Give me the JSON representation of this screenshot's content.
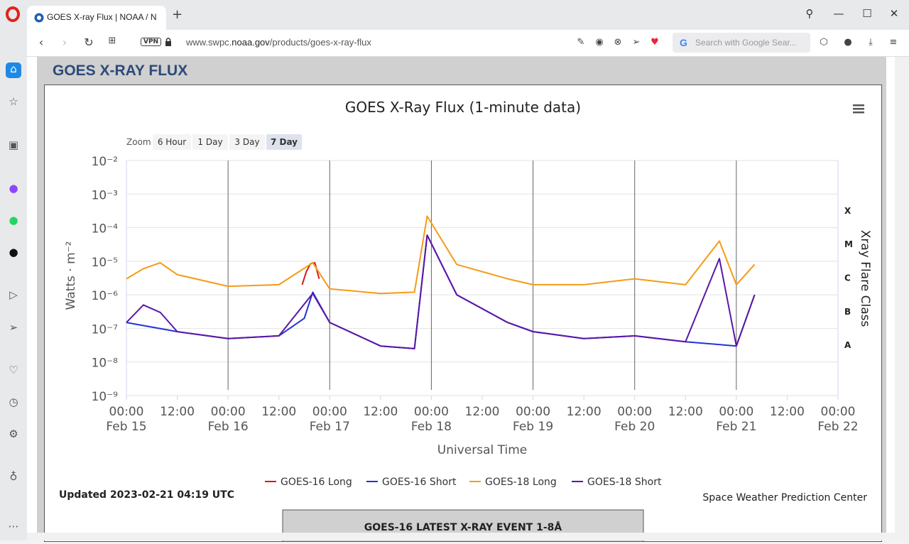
{
  "browser": {
    "tab_title": "GOES X-ray Flux | NOAA / N",
    "url_prefix": "www.swpc.",
    "url_domain": "noaa.gov",
    "url_path": "/products/goes-x-ray-flux",
    "vpn_label": "VPN",
    "search_placeholder": "Search with Google Sear...",
    "new_tab": "+"
  },
  "page": {
    "header": "GOES X-RAY FLUX",
    "updated": "Updated 2023-02-21 04:19 UTC",
    "credit": "Space Weather Prediction Center",
    "latest_event_title": "GOES-16 LATEST X-RAY EVENT 1-8Å"
  },
  "zoom": {
    "label": "Zoom",
    "buttons": [
      "6 Hour",
      "1 Day",
      "3 Day",
      "7 Day"
    ],
    "selected": "7 Day"
  },
  "chart_data": {
    "type": "line",
    "title": "GOES X-Ray Flux (1-minute data)",
    "xlabel": "Universal Time",
    "ylabel": "Watts · m⁻²",
    "y2label": "Xray Flare Class",
    "yscale": "log",
    "ylim": [
      1e-09,
      0.01
    ],
    "ytick_labels": [
      "10⁻²",
      "10⁻³",
      "10⁻⁴",
      "10⁻⁵",
      "10⁻⁶",
      "10⁻⁷",
      "10⁻⁸",
      "10⁻⁹"
    ],
    "xlim": [
      "2023-02-15 00:00",
      "2023-02-22 00:00"
    ],
    "xtick_labels": [
      [
        "00:00",
        "Feb 15"
      ],
      [
        "12:00",
        ""
      ],
      [
        "00:00",
        "Feb 16"
      ],
      [
        "12:00",
        ""
      ],
      [
        "00:00",
        "Feb 17"
      ],
      [
        "12:00",
        ""
      ],
      [
        "00:00",
        "Feb 18"
      ],
      [
        "12:00",
        ""
      ],
      [
        "00:00",
        "Feb 19"
      ],
      [
        "12:00",
        ""
      ],
      [
        "00:00",
        "Feb 20"
      ],
      [
        "12:00",
        ""
      ],
      [
        "00:00",
        "Feb 21"
      ],
      [
        "12:00",
        ""
      ],
      [
        "00:00",
        "Feb 22"
      ]
    ],
    "flare_classes": [
      {
        "label": "X",
        "flux": 0.0001
      },
      {
        "label": "M",
        "flux": 1e-05
      },
      {
        "label": "C",
        "flux": 1e-06
      },
      {
        "label": "B",
        "flux": 1e-07
      },
      {
        "label": "A",
        "flux": 1e-08
      }
    ],
    "legend_position": "bottom",
    "grid": true,
    "series": [
      {
        "name": "GOES-16 Long",
        "color": "#d7191c",
        "x": [
          "2023-02-16 17:30",
          "2023-02-16 18:30",
          "2023-02-16 19:30",
          "2023-02-16 20:30",
          "2023-02-16 21:30"
        ],
        "y": [
          2e-06,
          5e-06,
          8.5e-06,
          9e-06,
          3e-06
        ]
      },
      {
        "name": "GOES-16 Short",
        "color": "#2433d6",
        "x": [
          "2023-02-15 00:00",
          "2023-02-15 12:00",
          "2023-02-16 00:00",
          "2023-02-16 12:00",
          "2023-02-16 18:00",
          "2023-02-16 20:00",
          "2023-02-17 00:00",
          "2023-02-17 12:00",
          "2023-02-17 20:00",
          "2023-02-17 23:00",
          "2023-02-18 06:00",
          "2023-02-18 18:00",
          "2023-02-19 00:00",
          "2023-02-19 12:00",
          "2023-02-20 00:00",
          "2023-02-20 12:00",
          "2023-02-21 00:00",
          "2023-02-21 04:19"
        ],
        "y": [
          1.5e-07,
          8e-08,
          5e-08,
          6e-08,
          2e-07,
          1.2e-06,
          1.5e-07,
          3e-08,
          2.5e-08,
          6e-05,
          1e-06,
          1.5e-07,
          8e-08,
          5e-08,
          6e-08,
          4e-08,
          3e-08,
          1e-06
        ]
      },
      {
        "name": "GOES-18 Long",
        "color": "#f59b16",
        "x": [
          "2023-02-15 00:00",
          "2023-02-15 04:00",
          "2023-02-15 08:00",
          "2023-02-15 12:00",
          "2023-02-16 00:00",
          "2023-02-16 12:00",
          "2023-02-16 20:00",
          "2023-02-17 00:00",
          "2023-02-17 12:00",
          "2023-02-17 20:00",
          "2023-02-17 23:00",
          "2023-02-18 06:00",
          "2023-02-18 18:00",
          "2023-02-19 00:00",
          "2023-02-19 12:00",
          "2023-02-20 00:00",
          "2023-02-20 12:00",
          "2023-02-20 20:00",
          "2023-02-21 00:00",
          "2023-02-21 04:19"
        ],
        "y": [
          3e-06,
          6e-06,
          9e-06,
          4e-06,
          1.8e-06,
          2e-06,
          9e-06,
          1.5e-06,
          1.1e-06,
          1.2e-06,
          0.00022,
          8e-06,
          3e-06,
          2e-06,
          2e-06,
          3e-06,
          2e-06,
          4e-05,
          2e-06,
          8e-06
        ]
      },
      {
        "name": "GOES-18 Short",
        "color": "#5b17a6",
        "x": [
          "2023-02-15 00:00",
          "2023-02-15 04:00",
          "2023-02-15 08:00",
          "2023-02-15 12:00",
          "2023-02-16 00:00",
          "2023-02-16 12:00",
          "2023-02-16 20:00",
          "2023-02-17 00:00",
          "2023-02-17 12:00",
          "2023-02-17 20:00",
          "2023-02-17 23:00",
          "2023-02-18 06:00",
          "2023-02-18 18:00",
          "2023-02-19 00:00",
          "2023-02-19 12:00",
          "2023-02-20 00:00",
          "2023-02-20 12:00",
          "2023-02-20 20:00",
          "2023-02-21 00:00",
          "2023-02-21 04:19"
        ],
        "y": [
          1.5e-07,
          5e-07,
          3e-07,
          8e-08,
          5e-08,
          6e-08,
          1.1e-06,
          1.5e-07,
          3e-08,
          2.5e-08,
          6e-05,
          1e-06,
          1.5e-07,
          8e-08,
          5e-08,
          6e-08,
          4e-08,
          1.2e-05,
          3e-08,
          1e-06
        ]
      }
    ]
  }
}
